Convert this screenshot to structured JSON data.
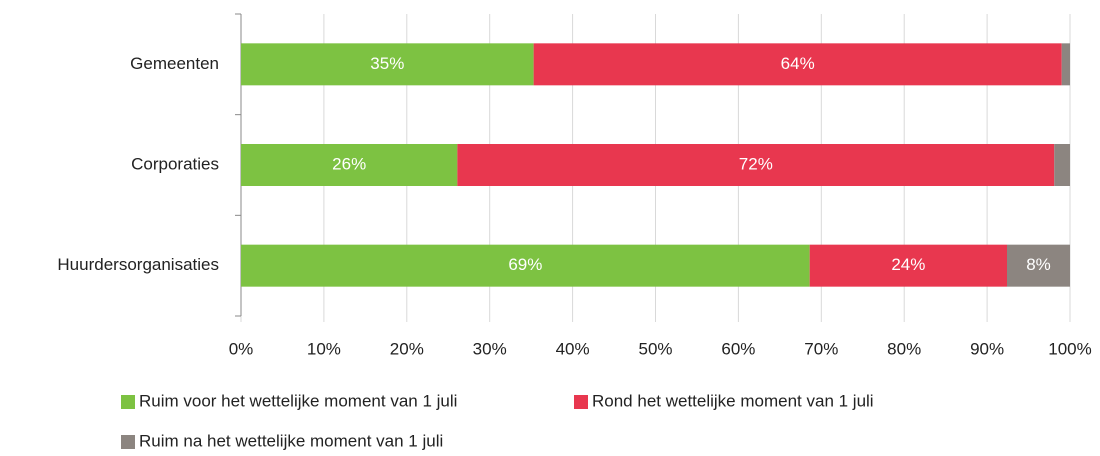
{
  "chart_data": {
    "type": "bar",
    "stacked": true,
    "grid": true,
    "categories": [
      "Gemeenten",
      "Corporaties",
      "Huurdersorganisaties"
    ],
    "series": [
      {
        "name": "Ruim voor het wettelijke moment van 1 juli",
        "color": "#7dc242",
        "values": [
          35.3,
          26.1,
          68.6
        ],
        "value_labels": [
          "35%",
          "26%",
          "69%"
        ]
      },
      {
        "name": "Rond het wettelijke moment van 1 juli",
        "color": "#e8374f",
        "values": [
          63.7,
          72.0,
          23.8
        ],
        "value_labels": [
          "64%",
          "72%",
          "24%"
        ]
      },
      {
        "name": "Ruim na het wettelijke moment van 1 juli",
        "color": "#8c8580",
        "values": [
          1.0,
          1.9,
          7.6
        ],
        "value_labels": [
          null,
          null,
          "8%"
        ]
      }
    ],
    "xlim": [
      0,
      100
    ],
    "xticks": [
      {
        "value": 0,
        "label": "0%"
      },
      {
        "value": 10,
        "label": "10%"
      },
      {
        "value": 20,
        "label": "20%"
      },
      {
        "value": 30,
        "label": "30%"
      },
      {
        "value": 40,
        "label": "40%"
      },
      {
        "value": 50,
        "label": "50%"
      },
      {
        "value": 60,
        "label": "60%"
      },
      {
        "value": 70,
        "label": "70%"
      },
      {
        "value": 80,
        "label": "80%"
      },
      {
        "value": 90,
        "label": "90%"
      },
      {
        "value": 100,
        "label": "100%"
      }
    ]
  }
}
